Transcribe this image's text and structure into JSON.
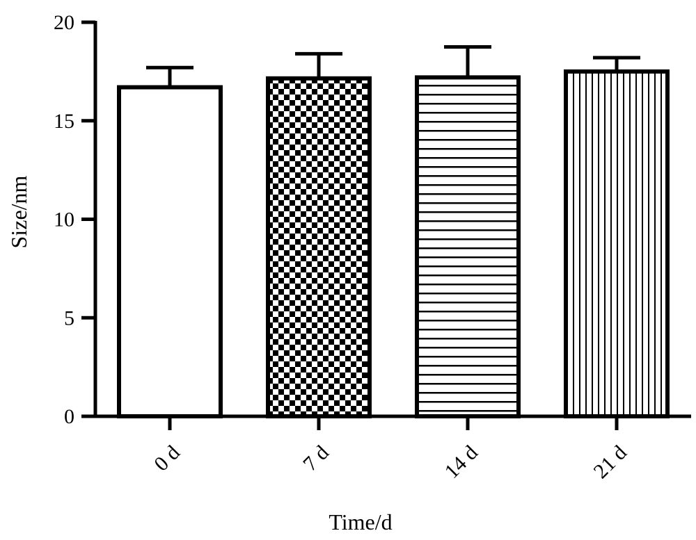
{
  "chart_data": {
    "type": "bar",
    "categories": [
      "0 d",
      "7 d",
      "14 d",
      "21 d"
    ],
    "values": [
      16.7,
      17.15,
      17.2,
      17.5
    ],
    "errors": [
      1.0,
      1.25,
      1.55,
      0.7
    ],
    "fill_patterns": [
      "solid-white",
      "checkerboard",
      "horizontal-lines",
      "vertical-lines"
    ],
    "xlabel": "Time/d",
    "ylabel": "Size/nm",
    "ylim": [
      0,
      20
    ],
    "yticks": [
      0,
      5,
      10,
      15,
      20
    ],
    "grid": false,
    "legend": "none",
    "colors": {
      "stroke": "#000000",
      "background": "#ffffff"
    }
  }
}
